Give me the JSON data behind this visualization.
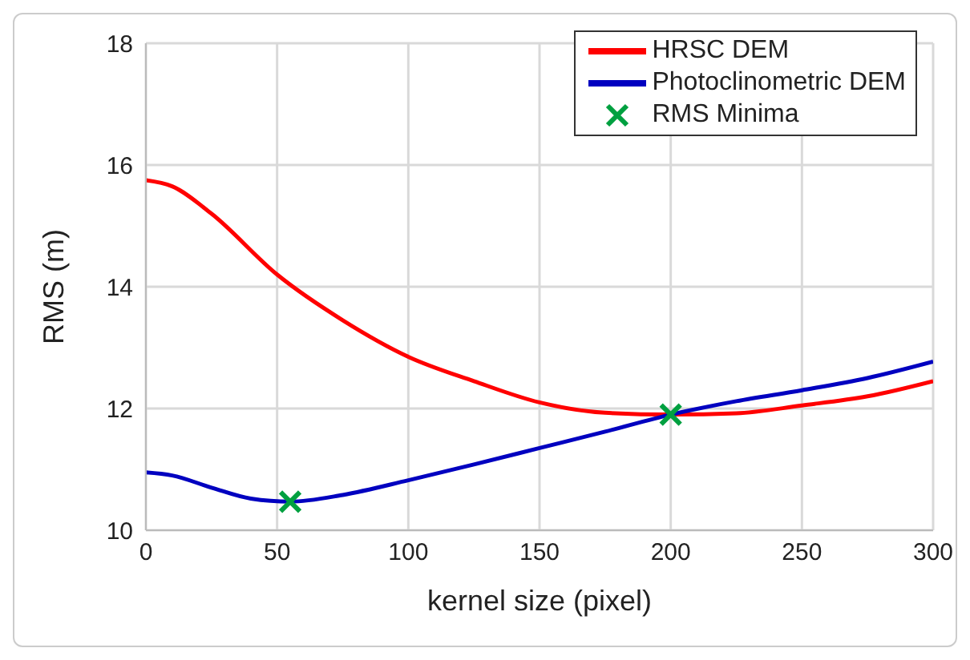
{
  "chart_data": {
    "type": "line",
    "xlabel": "kernel size (pixel)",
    "ylabel": "RMS (m)",
    "xlim": [
      0,
      300
    ],
    "xticks": [
      0,
      50,
      100,
      150,
      200,
      250,
      300
    ],
    "ylim": [
      10,
      18
    ],
    "yticks": [
      10,
      12,
      14,
      16,
      18
    ],
    "grid": true,
    "legend": "top right",
    "series": [
      {
        "name": "HRSC DEM",
        "color": "#ff0000",
        "x": [
          0,
          10,
          25,
          50,
          75,
          100,
          125,
          150,
          175,
          200,
          225,
          250,
          275,
          300
        ],
        "values": [
          15.75,
          15.65,
          15.2,
          14.2,
          13.45,
          12.85,
          12.45,
          12.1,
          11.93,
          11.9,
          11.92,
          12.05,
          12.2,
          12.45
        ]
      },
      {
        "name": "Photoclinometric DEM",
        "color": "#0000c0",
        "x": [
          0,
          10,
          25,
          40,
          55,
          75,
          100,
          125,
          150,
          175,
          200,
          225,
          250,
          275,
          300
        ],
        "values": [
          10.95,
          10.9,
          10.7,
          10.52,
          10.47,
          10.58,
          10.82,
          11.08,
          11.35,
          11.62,
          11.9,
          12.12,
          12.3,
          12.5,
          12.77
        ]
      },
      {
        "name": "RMS Minima",
        "type": "scatter",
        "marker": "cross",
        "color": "#00a040",
        "x": [
          55,
          200
        ],
        "values": [
          10.47,
          11.9
        ]
      }
    ]
  }
}
